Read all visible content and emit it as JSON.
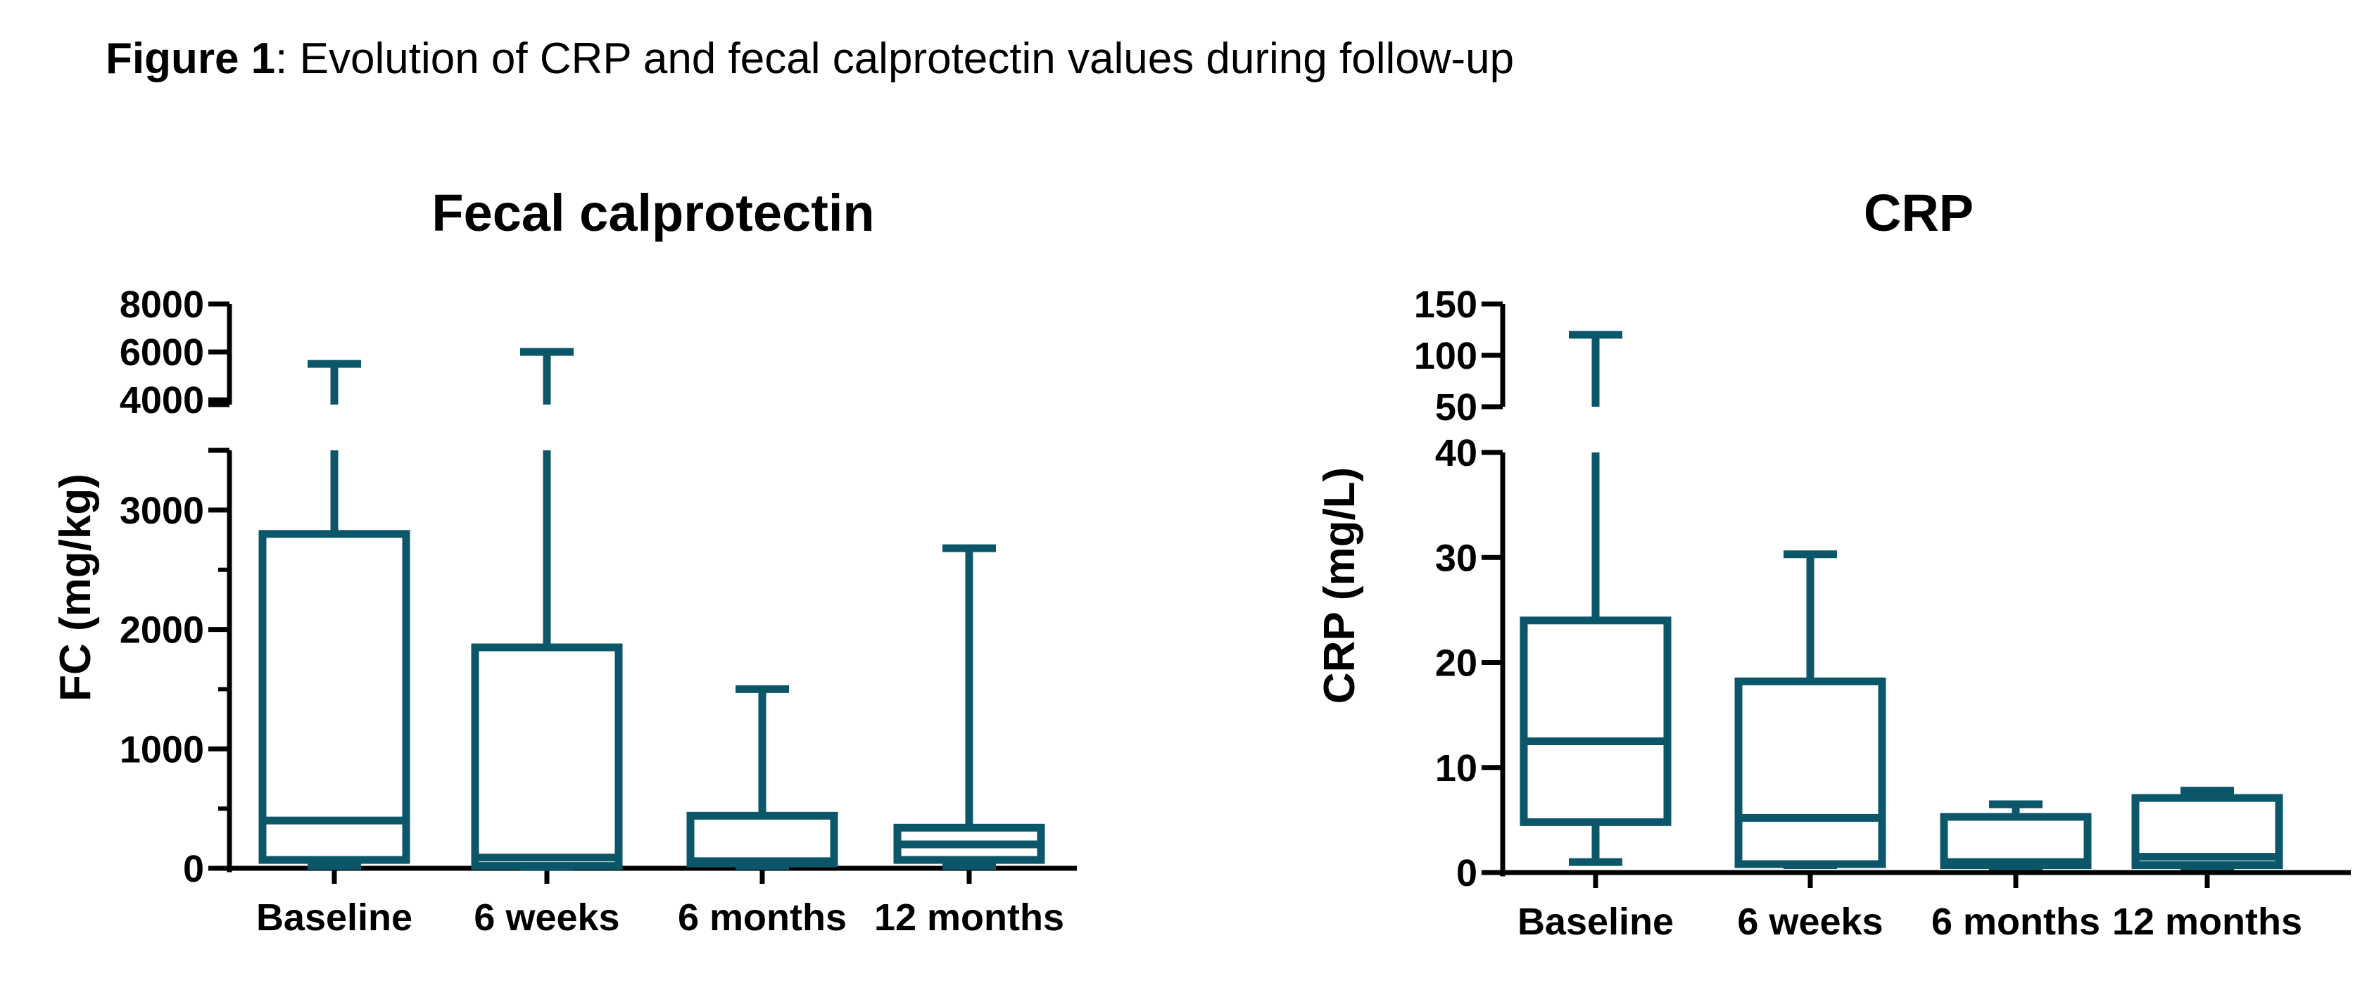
{
  "figure": {
    "caption_bold": "Figure 1",
    "caption_rest": ": Evolution of CRP and fecal calprotectin values during follow-up"
  },
  "chart_data": [
    {
      "type": "box",
      "title": "Fecal calprotectin",
      "ylabel": "FC (mg/kg)",
      "xlabel": "",
      "categories": [
        "Baseline",
        "6 weeks",
        "6 months",
        "12 months"
      ],
      "y_axis_broken": true,
      "lower_segment": {
        "ylim": [
          0,
          3500
        ],
        "ticks": [
          0,
          1000,
          2000,
          3000
        ],
        "tick_labels": [
          "0",
          "1000",
          "2000",
          "3000"
        ]
      },
      "upper_segment": {
        "ylim": [
          3800,
          8000
        ],
        "ticks": [
          4000,
          6000,
          8000
        ],
        "tick_labels": [
          "4000",
          "6000",
          "8000"
        ]
      },
      "boxes": [
        {
          "category": "Baseline",
          "min": 20,
          "q1": 70,
          "median": 400,
          "q3": 2800,
          "max": 5500
        },
        {
          "category": "6 weeks",
          "min": 10,
          "q1": 20,
          "median": 90,
          "q3": 1850,
          "max": 6000
        },
        {
          "category": "6 months",
          "min": 20,
          "q1": 40,
          "median": 60,
          "q3": 440,
          "max": 1500
        },
        {
          "category": "12 months",
          "min": 20,
          "q1": 70,
          "median": 200,
          "q3": 340,
          "max": 2680
        }
      ],
      "color": "#0b5669"
    },
    {
      "type": "box",
      "title": "CRP",
      "ylabel": "CRP (mg/L)",
      "xlabel": "",
      "categories": [
        "Baseline",
        "6 weeks",
        "6 months",
        "12 months"
      ],
      "y_axis_broken": true,
      "lower_segment": {
        "ylim": [
          0,
          40
        ],
        "ticks": [
          0,
          10,
          20,
          30,
          40
        ],
        "tick_labels": [
          "0",
          "10",
          "20",
          "30",
          "40"
        ]
      },
      "upper_segment": {
        "ylim": [
          50,
          150
        ],
        "ticks": [
          50,
          100,
          150
        ],
        "tick_labels": [
          "50",
          "100",
          "150"
        ]
      },
      "boxes": [
        {
          "category": "Baseline",
          "min": 1,
          "q1": 4.8,
          "median": 12.5,
          "q3": 24,
          "max": 120
        },
        {
          "category": "6 weeks",
          "min": 0.7,
          "q1": 0.8,
          "median": 5.2,
          "q3": 18.2,
          "max": 30.3
        },
        {
          "category": "6 months",
          "min": 0.6,
          "q1": 0.7,
          "median": 1.0,
          "q3": 5.3,
          "max": 6.5
        },
        {
          "category": "12 months",
          "min": 0.6,
          "q1": 0.7,
          "median": 1.5,
          "q3": 7.1,
          "max": 7.8
        }
      ],
      "color": "#0b5669"
    }
  ]
}
